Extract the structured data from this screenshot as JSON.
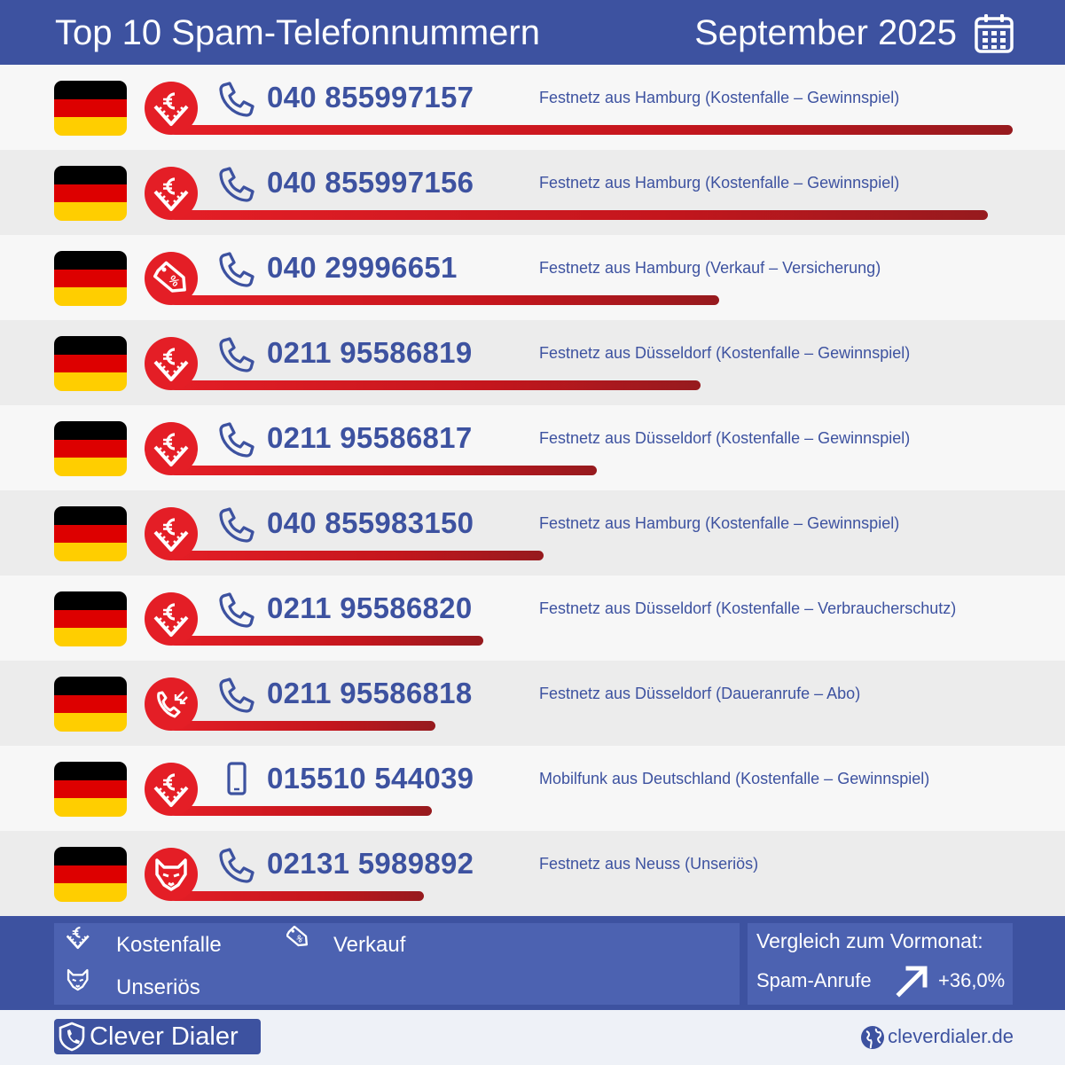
{
  "header": {
    "title": "Top 10 Spam-Telefonnummern",
    "date": "September 2025",
    "calendar_icon": "calendar-icon"
  },
  "colors": {
    "brand_blue": "#3d52a0",
    "accent_red": "#e41e26",
    "bar_dark_red": "#961a1e",
    "flag_black": "#000000",
    "flag_red": "#dd0000",
    "flag_gold": "#ffce00"
  },
  "chart_data": {
    "type": "bar",
    "orientation": "horizontal",
    "categories": [
      "040 855997157",
      "040 855997156",
      "040 29996651",
      "0211 95586819",
      "0211 95586817",
      "040 855983150",
      "0211 95586820",
      "0211 95586818",
      "015510 544039",
      "02131 5989892"
    ],
    "values": [
      100,
      97.1,
      65.2,
      62.9,
      50.6,
      44.3,
      37.2,
      31.5,
      31.0,
      30.1
    ],
    "rows": [
      {
        "number": "040 855997157",
        "description": "Festnetz aus Hamburg (Kostenfalle – Gewinnspiel)",
        "category_icon": "euro-icon",
        "phone_type": "landline-phone-icon",
        "country_flag": "germany-flag",
        "value": 100
      },
      {
        "number": "040 855997156",
        "description": "Festnetz aus Hamburg (Kostenfalle – Gewinnspiel)",
        "category_icon": "euro-icon",
        "phone_type": "landline-phone-icon",
        "country_flag": "germany-flag",
        "value": 97.1
      },
      {
        "number": "040 29996651",
        "description": "Festnetz aus Hamburg (Verkauf – Versicherung)",
        "category_icon": "sale-tag-icon",
        "phone_type": "landline-phone-icon",
        "country_flag": "germany-flag",
        "value": 65.2
      },
      {
        "number": "0211 95586819",
        "description": "Festnetz aus Düsseldorf (Kostenfalle – Gewinnspiel)",
        "category_icon": "euro-icon",
        "phone_type": "landline-phone-icon",
        "country_flag": "germany-flag",
        "value": 62.9
      },
      {
        "number": "0211 95586817",
        "description": "Festnetz aus Düsseldorf (Kostenfalle – Gewinnspiel)",
        "category_icon": "euro-icon",
        "phone_type": "landline-phone-icon",
        "country_flag": "germany-flag",
        "value": 50.6
      },
      {
        "number": "040 855983150",
        "description": "Festnetz aus Hamburg (Kostenfalle – Gewinnspiel)",
        "category_icon": "euro-icon",
        "phone_type": "landline-phone-icon",
        "country_flag": "germany-flag",
        "value": 44.3
      },
      {
        "number": "0211 95586820",
        "description": "Festnetz aus Düsseldorf (Kostenfalle – Verbraucherschutz)",
        "category_icon": "euro-icon",
        "phone_type": "landline-phone-icon",
        "country_flag": "germany-flag",
        "value": 37.2
      },
      {
        "number": "0211 95586818",
        "description": "Festnetz aus Düsseldorf (Daueranrufe – Abo)",
        "category_icon": "repeated-calls-icon",
        "phone_type": "landline-phone-icon",
        "country_flag": "germany-flag",
        "value": 31.5
      },
      {
        "number": "015510 544039",
        "description": "Mobilfunk aus Deutschland (Kostenfalle – Gewinnspiel)",
        "category_icon": "euro-icon",
        "phone_type": "mobile-phone-icon",
        "country_flag": "germany-flag",
        "value": 31.0
      },
      {
        "number": "02131 5989892",
        "description": "Festnetz aus Neuss (Unseriös)",
        "category_icon": "fox-icon",
        "phone_type": "landline-phone-icon",
        "country_flag": "germany-flag",
        "value": 30.1
      }
    ],
    "xlim": [
      0,
      100
    ],
    "grid": false
  },
  "legend": {
    "items": [
      {
        "label": "Kostenfalle",
        "icon": "euro-icon"
      },
      {
        "label": "Verkauf",
        "icon": "sale-tag-icon"
      },
      {
        "label": "Unseriös",
        "icon": "fox-icon"
      }
    ]
  },
  "comparison": {
    "title": "Vergleich zum Vormonat:",
    "label": "Spam-Anrufe",
    "value": "+36,0%",
    "trend_icon": "arrow-up-right-icon"
  },
  "footer": {
    "brand": "Clever Dialer",
    "site": "cleverdialer.de"
  }
}
